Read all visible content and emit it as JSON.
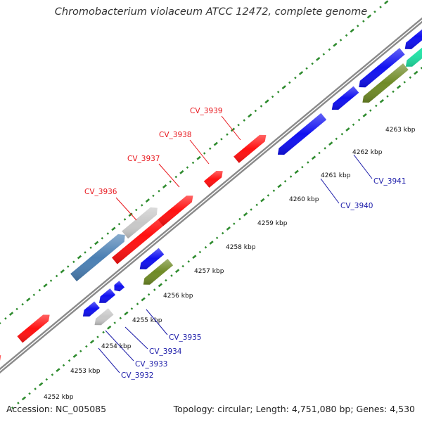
{
  "title": "Chromobacterium violaceum ATCC 12472, complete genome",
  "footer": {
    "accession": "Accession: NC_005085",
    "topology": "Topology: circular; Length: 4,751,080 bp; Genes: 4,530"
  },
  "colors": {
    "backbone": "#8a8a8a",
    "gc_dots": "#2e8b2e",
    "forward_label": "#e8151b",
    "reverse_label": "#1a1aa8",
    "red": "#ff1010",
    "blue": "#1010f0",
    "gray": "#c8c8c8",
    "steel": "#4a7fb3",
    "olive": "#6f8a26",
    "mint": "#22e6a8"
  },
  "ticks": [
    "4252 kbp",
    "4253 kbp",
    "4254 kbp",
    "4255 kbp",
    "4256 kbp",
    "4257 kbp",
    "4258 kbp",
    "4259 kbp",
    "4260 kbp",
    "4261 kbp",
    "4262 kbp",
    "4263 kbp"
  ],
  "gene_labels": {
    "forward": [
      "CV_3936",
      "CV_3937",
      "CV_3938",
      "CV_3939"
    ],
    "reverse": [
      "CV_3932",
      "CV_3933",
      "CV_3934",
      "CV_3935",
      "CV_3940",
      "CV_3941"
    ]
  }
}
